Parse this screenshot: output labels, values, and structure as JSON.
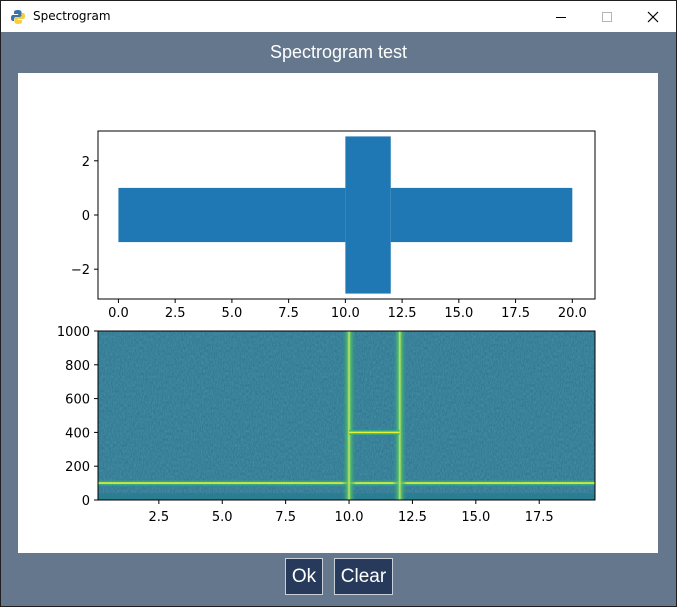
{
  "window": {
    "title": "Spectrogram",
    "heading": "Spectrogram test",
    "bg_color": "#64778d",
    "titlebar_buttons": [
      "minimize-icon",
      "maximize-icon",
      "close-icon"
    ]
  },
  "buttons": {
    "ok_label": "Ok",
    "clear_label": "Clear",
    "bg_color": "#283a5c"
  },
  "chart_data": [
    {
      "type": "area",
      "description_free": true,
      "series_color": "#1f77b4",
      "x_ticks": [
        "0.0",
        "2.5",
        "5.0",
        "7.5",
        "10.0",
        "12.5",
        "15.0",
        "17.5",
        "20.0"
      ],
      "y_ticks": [
        "2",
        "0",
        "−2"
      ],
      "xlim": [
        -0.9,
        21.0
      ],
      "ylim": [
        -3.1,
        3.1
      ],
      "segments": [
        {
          "x": [
            0.0,
            10.0
          ],
          "y_min": -1.0,
          "y_max": 1.0
        },
        {
          "x": [
            10.0,
            12.0
          ],
          "y_min": -2.9,
          "y_max": 2.9
        },
        {
          "x": [
            12.0,
            20.0
          ],
          "y_min": -1.0,
          "y_max": 1.0
        }
      ]
    },
    {
      "type": "heatmap",
      "colormap": "viridis",
      "x_ticks": [
        "2.5",
        "5.0",
        "7.5",
        "10.0",
        "12.5",
        "15.0",
        "17.5"
      ],
      "y_ticks": [
        "1000",
        "800",
        "600",
        "400",
        "200",
        "0"
      ],
      "xlim": [
        0.1,
        19.7
      ],
      "ylim": [
        0,
        1000
      ],
      "features": [
        {
          "kind": "horizontal-line",
          "freq": 100,
          "x": [
            0.1,
            19.7
          ]
        },
        {
          "kind": "vertical-band",
          "time": 10.0
        },
        {
          "kind": "vertical-band",
          "time": 12.0
        },
        {
          "kind": "horizontal-line",
          "freq": 400,
          "x": [
            10.0,
            12.0
          ]
        }
      ]
    }
  ]
}
